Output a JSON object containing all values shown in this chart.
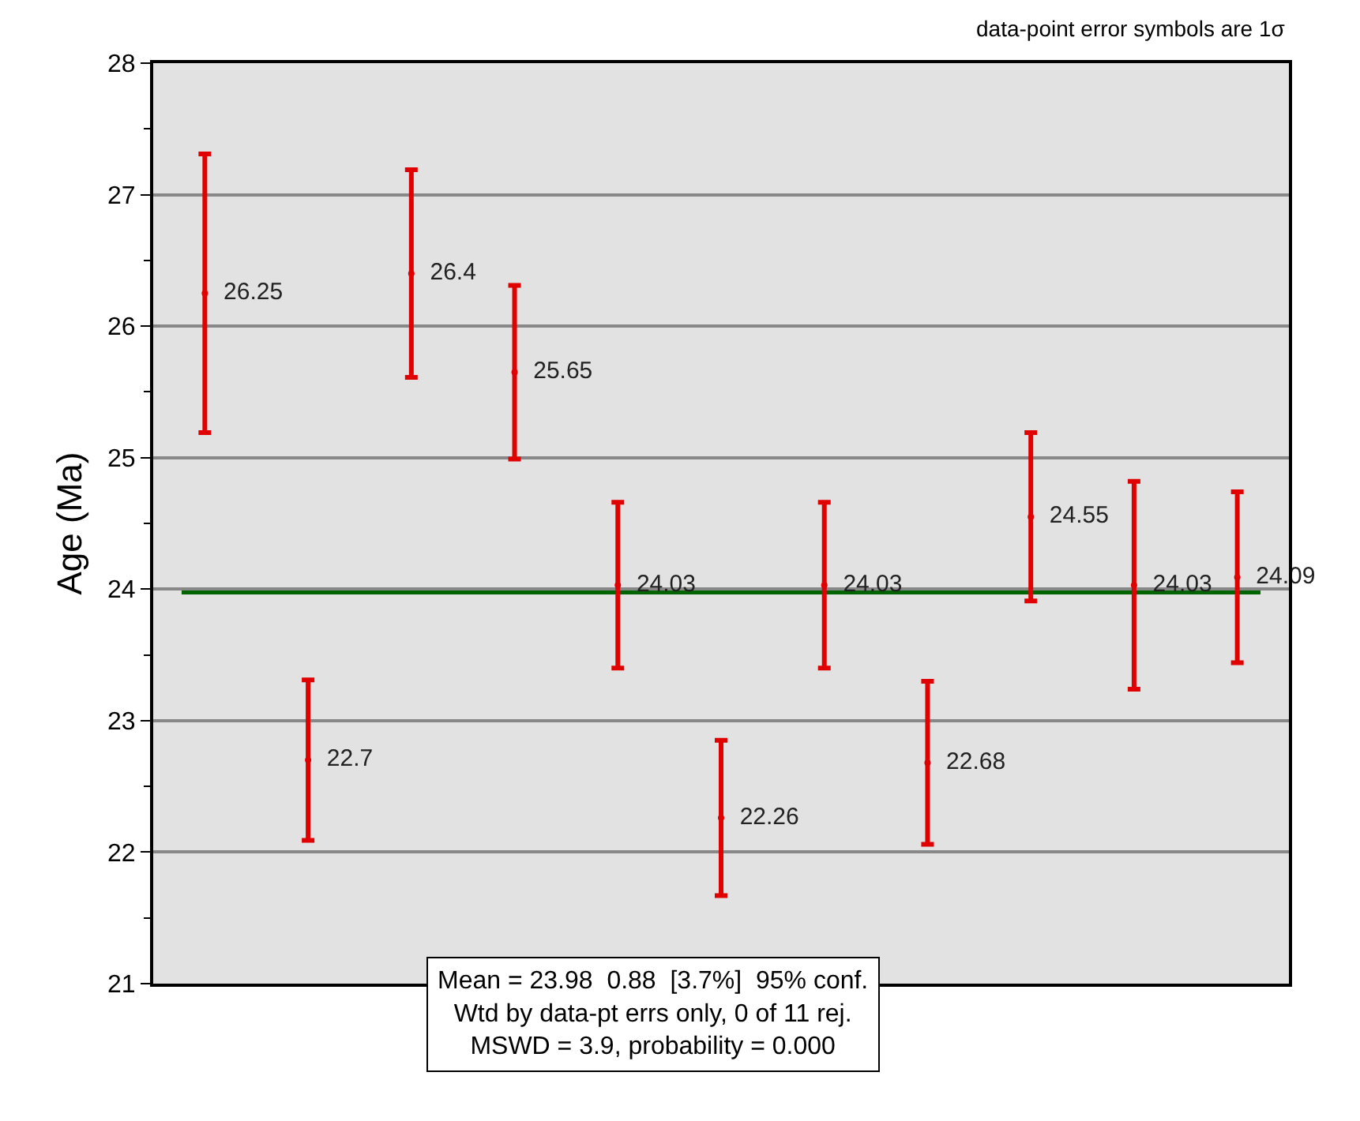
{
  "chart_data": {
    "type": "scatter",
    "ylabel": "Age (Ma)",
    "categories": [
      null,
      null,
      null,
      null,
      null,
      null,
      null,
      null,
      null,
      null,
      null
    ],
    "series": [
      {
        "color": "#e00000",
        "values": [
          26.25,
          22.7,
          26.4,
          25.65,
          24.03,
          22.26,
          24.03,
          22.68,
          24.55,
          24.03,
          24.09
        ],
        "errors": [
          1.06,
          0.61,
          0.79,
          0.66,
          0.63,
          0.59,
          0.63,
          0.62,
          0.64,
          0.79,
          0.65
        ]
      }
    ],
    "data_labels": true,
    "ylim": [
      21,
      28
    ],
    "yticks": [
      21,
      {
        "value": 21.5,
        "label": null
      },
      22,
      {
        "value": 22.5,
        "label": null
      },
      23,
      {
        "value": 23.5,
        "label": null
      },
      24,
      {
        "value": 24.5,
        "label": null
      },
      25,
      {
        "value": 25.5,
        "label": null
      },
      26,
      {
        "value": 26.5,
        "label": null
      },
      27,
      {
        "value": 27.5,
        "label": null
      },
      28
    ],
    "grid": "y",
    "ref_lines": [
      {
        "axis": "y",
        "value": 23.98,
        "color": "#006400",
        "line_style": "solid"
      }
    ],
    "annotations": [
      "data-point error symbols are 1σ",
      "Mean = 23.98  0.88  [3.7%]  95% conf.\nWtd by data-pt errs only, 0 of 11 rej.\nMSWD = 3.9, probability = 0.000"
    ]
  }
}
